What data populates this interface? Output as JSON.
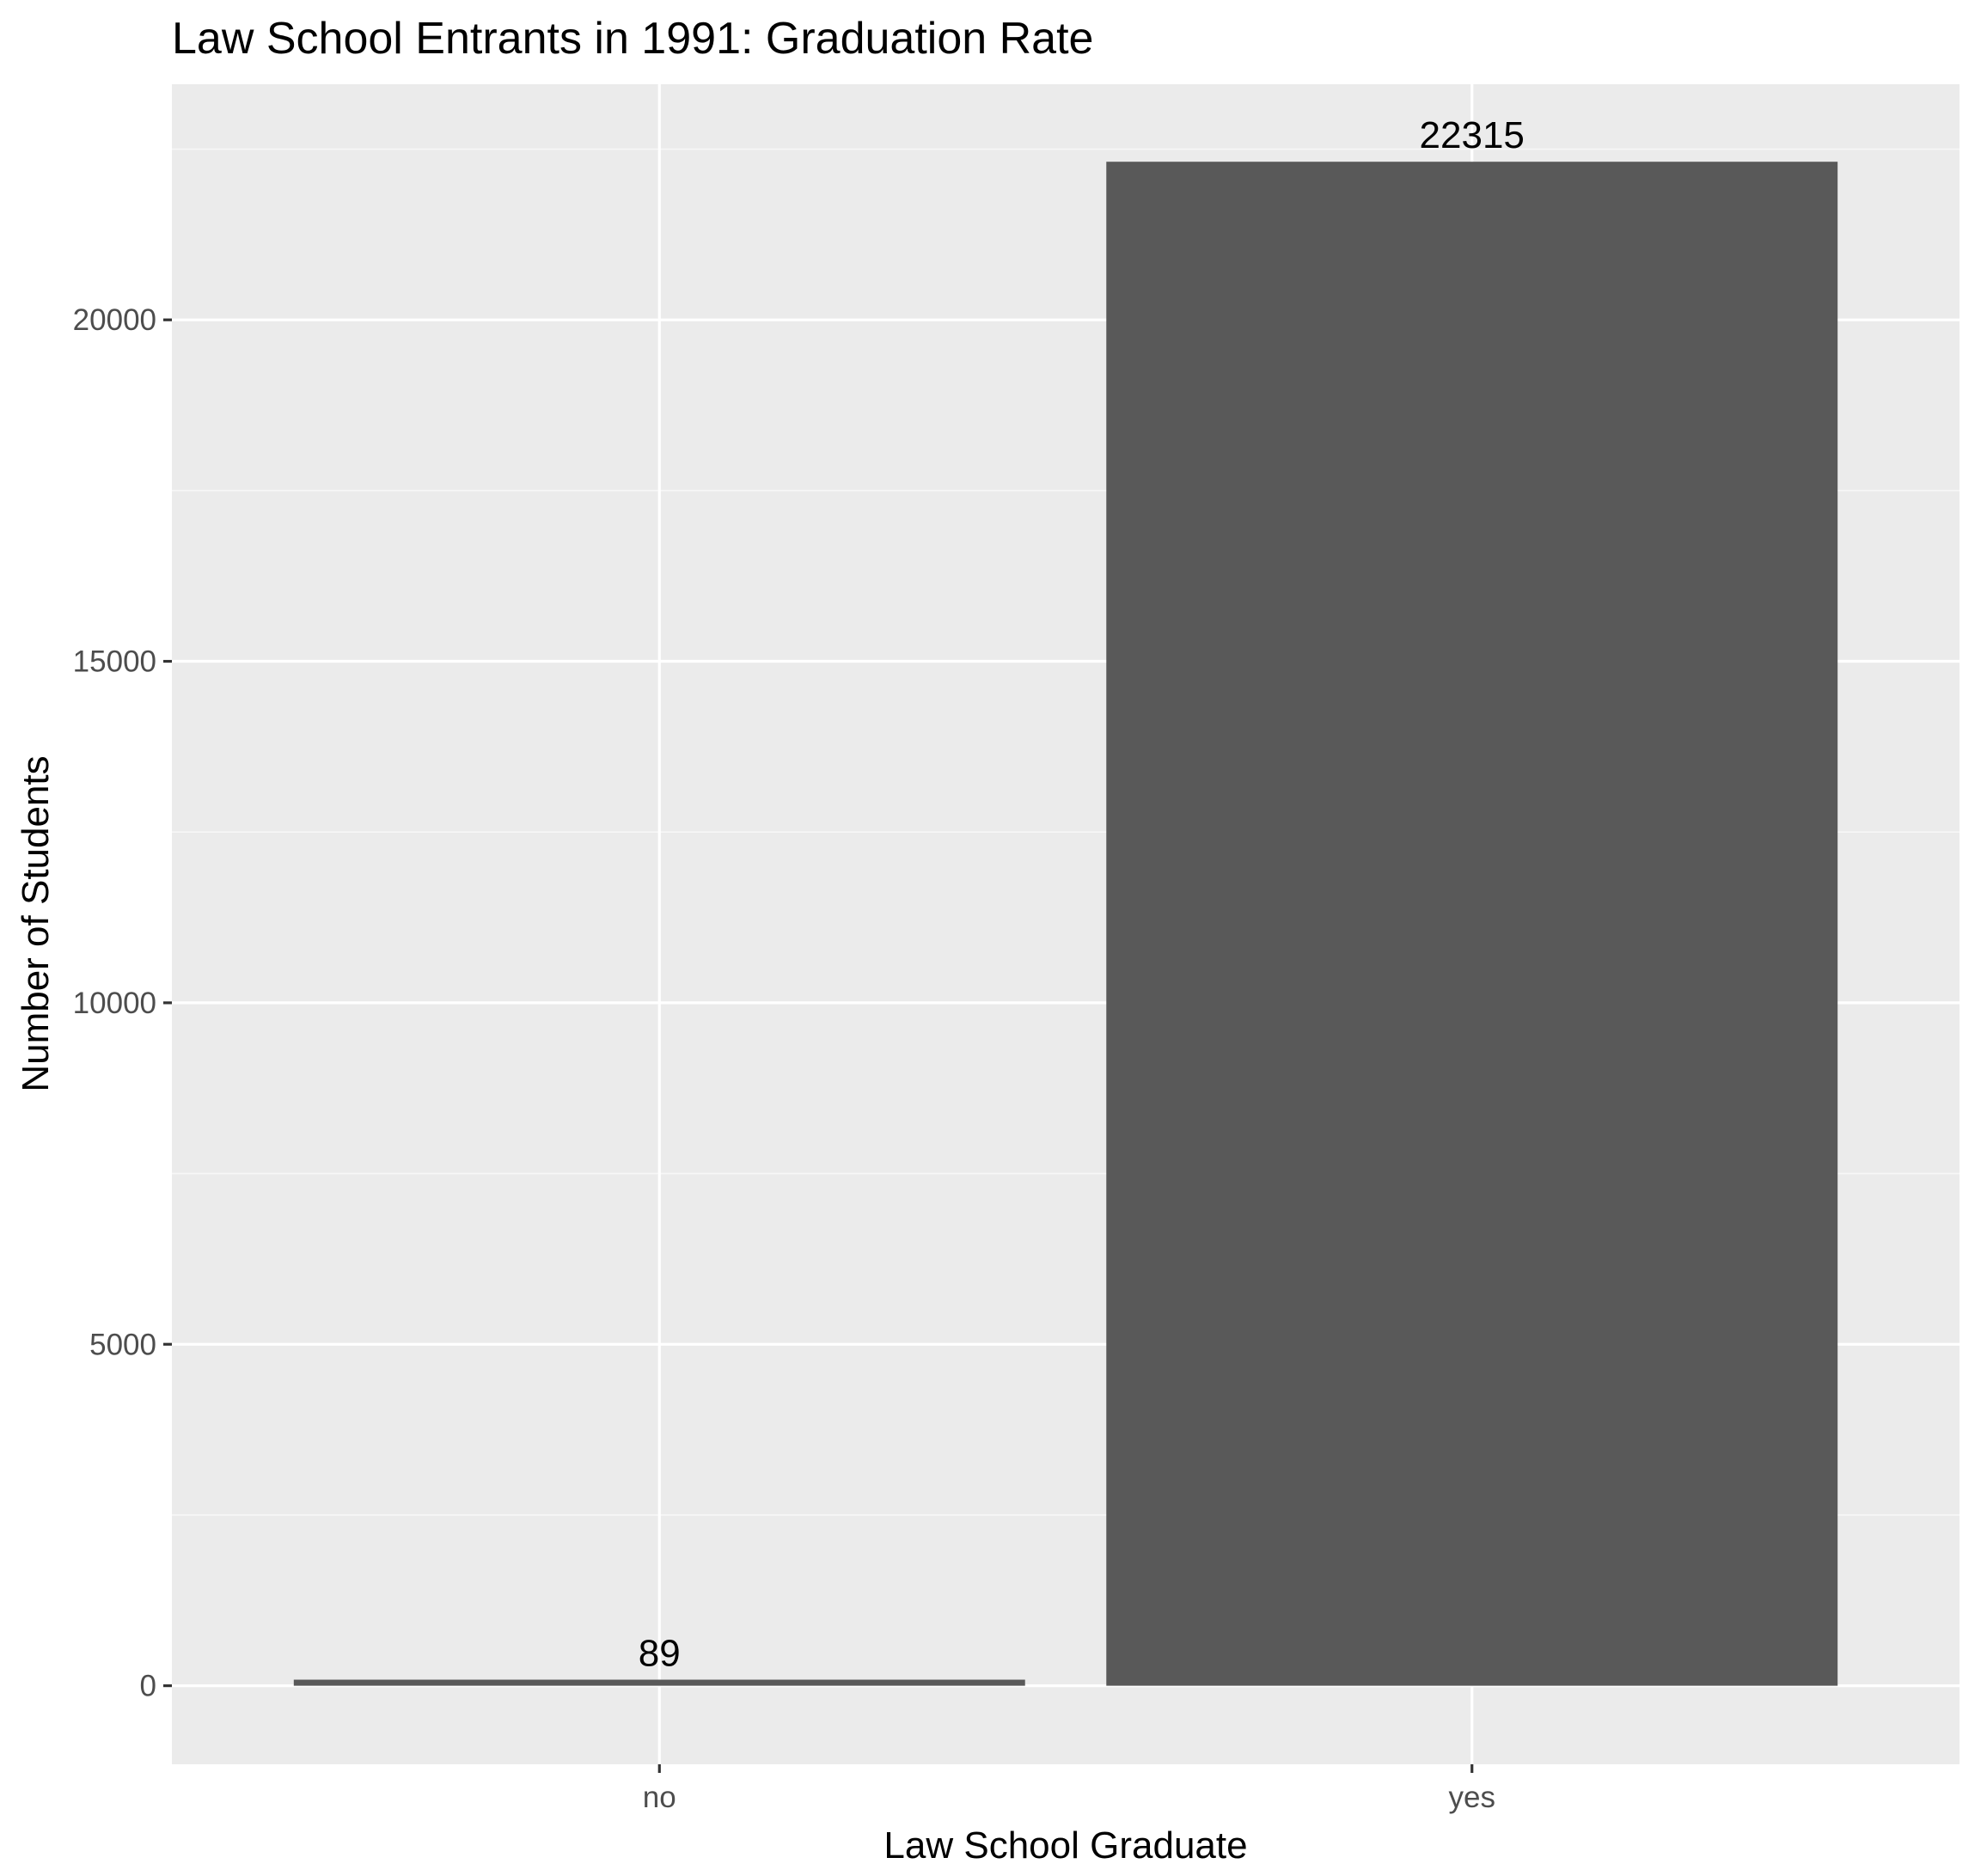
{
  "chart_data": {
    "type": "bar",
    "title": "Law School Entrants in 1991: Graduation Rate",
    "xlabel": "Law School Graduate",
    "ylabel": "Number of Students",
    "categories": [
      "no",
      "yes"
    ],
    "values": [
      89,
      22315
    ],
    "data_labels": [
      "89",
      "22315"
    ],
    "ylim": [
      -1150,
      23450
    ],
    "yticks": [
      0,
      5000,
      10000,
      15000,
      20000
    ],
    "ytick_labels": [
      "0",
      "5000",
      "10000",
      "15000",
      "20000"
    ],
    "grid": true,
    "legend": "none",
    "colors": {
      "panel_background": "#ebebeb",
      "grid_major": "#ffffff",
      "grid_minor": "#f7f7f7",
      "bar_fill": "#595959",
      "tick_color": "#333333",
      "tick_label_color": "#4d4d4d",
      "text_color": "#000000"
    }
  }
}
